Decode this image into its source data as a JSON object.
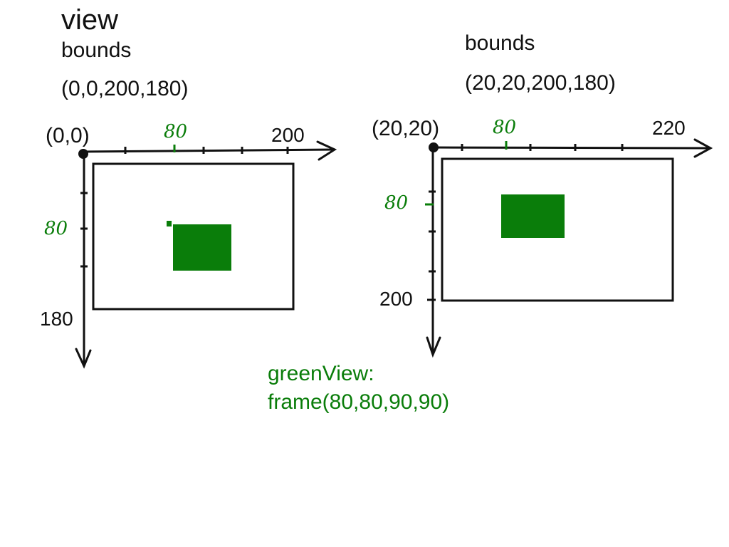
{
  "title": "view",
  "left_panel": {
    "bounds_label": "bounds",
    "bounds_value": "(0,0,200,180)",
    "origin_label": "(0,0)",
    "x_max_label": "200",
    "y_max_label": "180",
    "x_mark_label": "80",
    "y_mark_label": "80"
  },
  "right_panel": {
    "bounds_label": "bounds",
    "bounds_value": "(20,20,200,180)",
    "origin_label": "(20,20)",
    "x_max_label": "220",
    "y_max_label": "200",
    "x_mark_label": "80",
    "y_mark_label": "80"
  },
  "green_view": {
    "line1": "greenView:",
    "line2": "frame(80,80,90,90)"
  },
  "colors": {
    "green": "#0a7d0a",
    "ink": "#111111"
  }
}
